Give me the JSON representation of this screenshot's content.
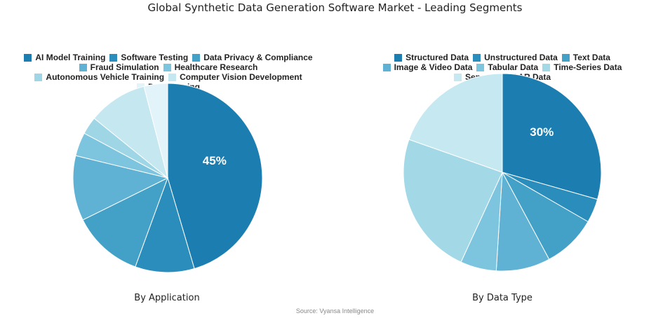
{
  "title": "Global Synthetic Data Generation Software Market - Leading Segments",
  "source": "Source: Vyansa Intelligence",
  "chart_data": [
    {
      "type": "pie",
      "subtitle": "By Application",
      "labels": [
        "AI Model Training",
        "Software Testing",
        "Data Privacy & Compliance",
        "Fraud Simulation",
        "Healthcare Research",
        "Autonomous Vehicle Training",
        "Computer Vision Development",
        "Data Sharing"
      ],
      "values": [
        45,
        10,
        12,
        11,
        4,
        3,
        10,
        4
      ],
      "colors": [
        "#1c7eb0",
        "#2b8dbb",
        "#43a1c8",
        "#5fb2d4",
        "#7dc4de",
        "#9fd6e6",
        "#c4e7f0",
        "#e2f4f9"
      ],
      "data_labels": [
        "45%",
        "",
        "",
        "",
        "",
        "",
        "",
        ""
      ]
    },
    {
      "type": "pie",
      "subtitle": "By Data Type",
      "labels": [
        "Structured Data",
        "Unstructured Data",
        "Text Data",
        "Image & Video Data",
        "Tabular Data",
        "Time-Series Data",
        "Sensor & LiDAR Data"
      ],
      "values": [
        30,
        4,
        9,
        9,
        6,
        24,
        20
      ],
      "colors": [
        "#1c7eb0",
        "#2b8dbb",
        "#43a1c8",
        "#5fb2d4",
        "#7dc4de",
        "#a3d8e7",
        "#c6e8f0"
      ],
      "data_labels": [
        "30%",
        "",
        "",
        "",
        "",
        "",
        ""
      ]
    }
  ]
}
